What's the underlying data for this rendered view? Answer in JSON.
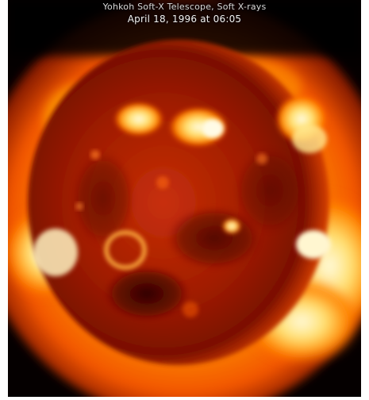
{
  "caption": {
    "line1": "Yohkoh Soft-X Telescope, Soft X-rays",
    "line2": "April 18, 1996 at 06:05"
  },
  "colors": {
    "background": "#050000",
    "corona_outer": "#ff6a00",
    "corona_inner": "#ffd000",
    "disk_dark": "#5a0a00",
    "disk_mid": "#b82000",
    "active_region": "#fff4c0"
  }
}
